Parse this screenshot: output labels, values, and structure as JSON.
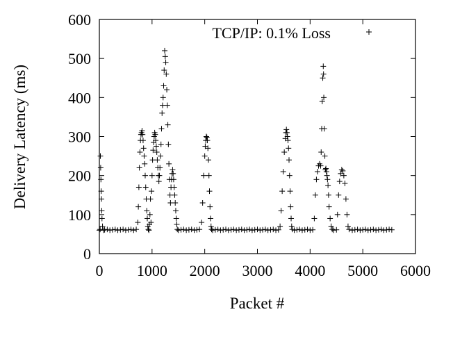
{
  "chart_data": {
    "type": "scatter",
    "title": "",
    "xlabel": "Packet #",
    "ylabel": "Delivery Latency (ms)",
    "xlim": [
      0,
      6000
    ],
    "ylim": [
      0,
      600
    ],
    "x_ticks": [
      "0",
      "1000",
      "2000",
      "3000",
      "4000",
      "5000",
      "6000"
    ],
    "y_ticks": [
      "0",
      "100",
      "200",
      "300",
      "400",
      "500",
      "600"
    ],
    "grid": false,
    "legend": {
      "position": "top-right",
      "entries": [
        {
          "label": "TCP/IP: 0.1% Loss",
          "marker": "+",
          "color": "#000000"
        }
      ]
    },
    "marker": "+",
    "marker_color": "#000000",
    "series": [
      {
        "name": "TCP/IP: 0.1% Loss",
        "points": [
          [
            0,
            60
          ],
          [
            15,
            62
          ],
          [
            20,
            250
          ],
          [
            25,
            220
          ],
          [
            30,
            190
          ],
          [
            35,
            160
          ],
          [
            40,
            140
          ],
          [
            45,
            110
          ],
          [
            50,
            90
          ],
          [
            60,
            70
          ],
          [
            80,
            60
          ],
          [
            100,
            61
          ],
          [
            150,
            62
          ],
          [
            200,
            60
          ],
          [
            250,
            61
          ],
          [
            300,
            62
          ],
          [
            350,
            60
          ],
          [
            400,
            61
          ],
          [
            450,
            62
          ],
          [
            500,
            60
          ],
          [
            550,
            61
          ],
          [
            600,
            62
          ],
          [
            650,
            60
          ],
          [
            700,
            62
          ],
          [
            730,
            80
          ],
          [
            740,
            120
          ],
          [
            750,
            170
          ],
          [
            760,
            220
          ],
          [
            770,
            260
          ],
          [
            780,
            290
          ],
          [
            790,
            305
          ],
          [
            800,
            310
          ],
          [
            810,
            315
          ],
          [
            820,
            305
          ],
          [
            830,
            290
          ],
          [
            840,
            270
          ],
          [
            850,
            250
          ],
          [
            860,
            230
          ],
          [
            870,
            200
          ],
          [
            880,
            170
          ],
          [
            890,
            140
          ],
          [
            900,
            110
          ],
          [
            910,
            90
          ],
          [
            920,
            70
          ],
          [
            930,
            62
          ],
          [
            940,
            60
          ],
          [
            950,
            75
          ],
          [
            960,
            100
          ],
          [
            970,
            140
          ],
          [
            980,
            80
          ],
          [
            990,
            160
          ],
          [
            1000,
            200
          ],
          [
            1010,
            240
          ],
          [
            1020,
            265
          ],
          [
            1030,
            285
          ],
          [
            1040,
            300
          ],
          [
            1050,
            310
          ],
          [
            1060,
            305
          ],
          [
            1070,
            290
          ],
          [
            1080,
            275
          ],
          [
            1090,
            260
          ],
          [
            1100,
            240
          ],
          [
            1110,
            220
          ],
          [
            1120,
            200
          ],
          [
            1130,
            185
          ],
          [
            1140,
            200
          ],
          [
            1150,
            220
          ],
          [
            1160,
            250
          ],
          [
            1170,
            280
          ],
          [
            1180,
            320
          ],
          [
            1190,
            360
          ],
          [
            1200,
            380
          ],
          [
            1210,
            400
          ],
          [
            1220,
            430
          ],
          [
            1230,
            470
          ],
          [
            1240,
            520
          ],
          [
            1250,
            505
          ],
          [
            1260,
            490
          ],
          [
            1270,
            460
          ],
          [
            1280,
            420
          ],
          [
            1290,
            380
          ],
          [
            1300,
            330
          ],
          [
            1310,
            280
          ],
          [
            1320,
            230
          ],
          [
            1330,
            190
          ],
          [
            1340,
            150
          ],
          [
            1350,
            130
          ],
          [
            1360,
            170
          ],
          [
            1370,
            190
          ],
          [
            1380,
            205
          ],
          [
            1390,
            215
          ],
          [
            1400,
            205
          ],
          [
            1410,
            190
          ],
          [
            1420,
            170
          ],
          [
            1430,
            150
          ],
          [
            1440,
            130
          ],
          [
            1450,
            110
          ],
          [
            1460,
            90
          ],
          [
            1470,
            75
          ],
          [
            1480,
            62
          ],
          [
            1500,
            60
          ],
          [
            1550,
            61
          ],
          [
            1600,
            62
          ],
          [
            1650,
            60
          ],
          [
            1700,
            61
          ],
          [
            1750,
            62
          ],
          [
            1800,
            60
          ],
          [
            1850,
            61
          ],
          [
            1900,
            62
          ],
          [
            1940,
            80
          ],
          [
            1960,
            130
          ],
          [
            1980,
            200
          ],
          [
            2000,
            250
          ],
          [
            2010,
            275
          ],
          [
            2020,
            290
          ],
          [
            2030,
            300
          ],
          [
            2040,
            298
          ],
          [
            2050,
            290
          ],
          [
            2060,
            270
          ],
          [
            2070,
            240
          ],
          [
            2080,
            200
          ],
          [
            2090,
            160
          ],
          [
            2100,
            120
          ],
          [
            2110,
            90
          ],
          [
            2120,
            70
          ],
          [
            2130,
            62
          ],
          [
            2150,
            60
          ],
          [
            2200,
            61
          ],
          [
            2250,
            62
          ],
          [
            2300,
            60
          ],
          [
            2350,
            61
          ],
          [
            2400,
            62
          ],
          [
            2450,
            60
          ],
          [
            2500,
            61
          ],
          [
            2550,
            62
          ],
          [
            2600,
            60
          ],
          [
            2650,
            61
          ],
          [
            2700,
            62
          ],
          [
            2750,
            60
          ],
          [
            2800,
            61
          ],
          [
            2850,
            62
          ],
          [
            2900,
            60
          ],
          [
            2950,
            61
          ],
          [
            3000,
            62
          ],
          [
            3050,
            60
          ],
          [
            3100,
            61
          ],
          [
            3150,
            62
          ],
          [
            3200,
            60
          ],
          [
            3250,
            61
          ],
          [
            3300,
            62
          ],
          [
            3350,
            60
          ],
          [
            3400,
            61
          ],
          [
            3430,
            70
          ],
          [
            3450,
            110
          ],
          [
            3470,
            160
          ],
          [
            3490,
            210
          ],
          [
            3510,
            260
          ],
          [
            3530,
            295
          ],
          [
            3540,
            310
          ],
          [
            3550,
            318
          ],
          [
            3560,
            310
          ],
          [
            3570,
            300
          ],
          [
            3580,
            290
          ],
          [
            3590,
            270
          ],
          [
            3600,
            240
          ],
          [
            3610,
            200
          ],
          [
            3620,
            160
          ],
          [
            3630,
            120
          ],
          [
            3640,
            90
          ],
          [
            3650,
            70
          ],
          [
            3660,
            62
          ],
          [
            3700,
            60
          ],
          [
            3750,
            61
          ],
          [
            3800,
            62
          ],
          [
            3850,
            60
          ],
          [
            3900,
            61
          ],
          [
            3950,
            62
          ],
          [
            4000,
            60
          ],
          [
            4050,
            61
          ],
          [
            4080,
            90
          ],
          [
            4100,
            150
          ],
          [
            4120,
            190
          ],
          [
            4140,
            210
          ],
          [
            4160,
            225
          ],
          [
            4180,
            230
          ],
          [
            4200,
            225
          ],
          [
            4210,
            260
          ],
          [
            4220,
            320
          ],
          [
            4230,
            390
          ],
          [
            4240,
            450
          ],
          [
            4250,
            480
          ],
          [
            4255,
            460
          ],
          [
            4260,
            400
          ],
          [
            4270,
            320
          ],
          [
            4280,
            250
          ],
          [
            4290,
            215
          ],
          [
            4300,
            218
          ],
          [
            4310,
            210
          ],
          [
            4320,
            200
          ],
          [
            4330,
            190
          ],
          [
            4340,
            175
          ],
          [
            4350,
            150
          ],
          [
            4360,
            120
          ],
          [
            4380,
            90
          ],
          [
            4400,
            70
          ],
          [
            4420,
            62
          ],
          [
            4450,
            60
          ],
          [
            4500,
            61
          ],
          [
            4520,
            100
          ],
          [
            4540,
            150
          ],
          [
            4560,
            185
          ],
          [
            4580,
            205
          ],
          [
            4600,
            215
          ],
          [
            4620,
            212
          ],
          [
            4640,
            200
          ],
          [
            4660,
            180
          ],
          [
            4680,
            140
          ],
          [
            4700,
            100
          ],
          [
            4720,
            70
          ],
          [
            4740,
            62
          ],
          [
            4800,
            60
          ],
          [
            4850,
            61
          ],
          [
            4900,
            62
          ],
          [
            4950,
            60
          ],
          [
            5000,
            61
          ],
          [
            5050,
            62
          ],
          [
            5100,
            60
          ],
          [
            5150,
            61
          ],
          [
            5200,
            62
          ],
          [
            5250,
            60
          ],
          [
            5300,
            61
          ],
          [
            5350,
            62
          ],
          [
            5400,
            60
          ],
          [
            5450,
            61
          ],
          [
            5500,
            62
          ],
          [
            5550,
            61
          ]
        ]
      }
    ]
  }
}
